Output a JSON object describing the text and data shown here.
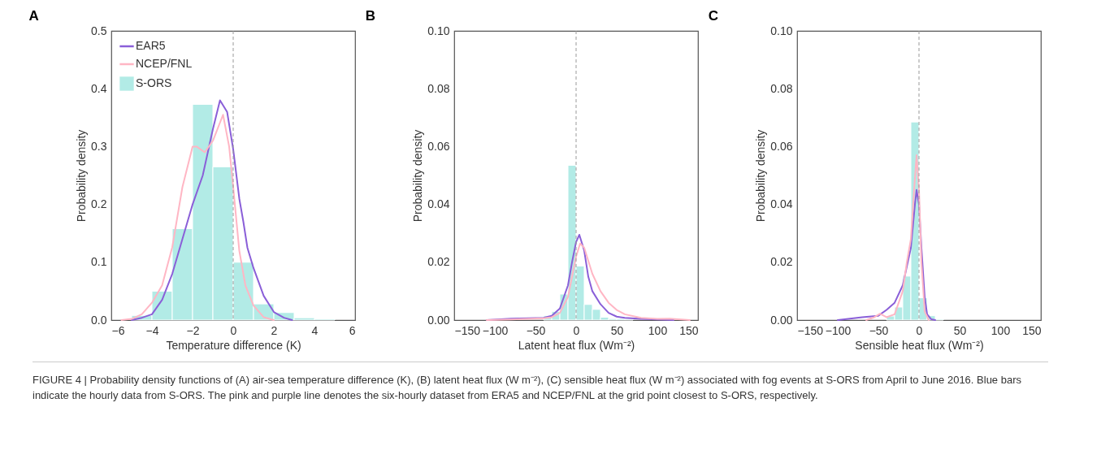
{
  "chart_data": [
    {
      "type": "histogram",
      "title": "A",
      "xlabel": "Temperature difference (K)",
      "ylabel": "Probability density",
      "legend": "top left",
      "xlim": [
        -6,
        6
      ],
      "xticks": [
        -6,
        -4,
        -2,
        0,
        2,
        4,
        6
      ],
      "ylim": [
        0,
        0.5
      ],
      "yticks": [
        {
          "value": 0,
          "label": "0.0"
        },
        {
          "value": 0.1,
          "label": "0.1"
        },
        {
          "value": 0.2,
          "label": "0.2"
        },
        {
          "value": 0.3,
          "label": "0.3"
        },
        {
          "value": 0.4,
          "label": "0.4"
        },
        {
          "value": 0.5,
          "label": "0.5"
        }
      ],
      "grid": false,
      "marker": "none",
      "line_style": "solid",
      "bins": [
        -5,
        -4,
        -3,
        -2,
        -1,
        0,
        1,
        2,
        3,
        4,
        5
      ],
      "series": [
        {
          "name": "EAR5",
          "type": "line",
          "color": "#8a5fd8",
          "x": [
            -5,
            -4.5,
            -4,
            -3.5,
            -3,
            -2.5,
            -2,
            -1.5,
            -1,
            -0.65,
            -0.3,
            0,
            0.3,
            0.5,
            0.7,
            1,
            1.5,
            2,
            2.5,
            2.9
          ],
          "values": [
            0,
            0.004,
            0.01,
            0.035,
            0.08,
            0.14,
            0.2,
            0.25,
            0.33,
            0.38,
            0.36,
            0.295,
            0.21,
            0.17,
            0.125,
            0.09,
            0.042,
            0.014,
            0.004,
            0
          ]
        },
        {
          "name": "NCEP/FNL",
          "type": "line",
          "color": "#ffb6c4",
          "x": [
            -5.5,
            -5,
            -4.5,
            -4,
            -3.5,
            -3,
            -2.5,
            -2,
            -1.8,
            -1.4,
            -1,
            -0.5,
            -0.2,
            0,
            0.3,
            0.6,
            1,
            1.5,
            2
          ],
          "values": [
            0,
            0.002,
            0.01,
            0.03,
            0.06,
            0.126,
            0.23,
            0.3,
            0.3,
            0.29,
            0.31,
            0.355,
            0.3,
            0.23,
            0.12,
            0.06,
            0.025,
            0.005,
            0
          ]
        },
        {
          "name": "S-ORS",
          "color": "#b2ebe6",
          "values": [
            0.008,
            0.05,
            0.158,
            0.373,
            0.265,
            0.1,
            0.028,
            0.013,
            0.004,
            0.002
          ]
        }
      ],
      "ref_lines": [
        {
          "axis": "x",
          "value": 0,
          "color": "#999999",
          "line_style": "dashed"
        }
      ],
      "annotations": [
        "FIGURE 4 | Probability density functions of (A) air-sea temperature difference (K), (B) latent heat flux (W m⁻²), (C) sensible heat flux (W m⁻²) associated with fog events at S-ORS from April to June 2016. Blue bars indicate the hourly data from S-ORS. The pink and purple line denotes the six-hourly dataset from ERA5 and NCEP/FNL at the grid point closest to S-ORS, respectively."
      ]
    },
    {
      "type": "histogram",
      "title": "B",
      "xlabel": "Latent heat flux (Wm⁻²)",
      "ylabel": "Probability density",
      "xlim": [
        -150,
        150
      ],
      "xticks": [
        -150,
        -100,
        -50,
        0,
        50,
        100,
        150
      ],
      "ylim": [
        0,
        0.1
      ],
      "yticks": [
        {
          "value": 0,
          "label": "0.00"
        },
        {
          "value": 0.02,
          "label": "0.02"
        },
        {
          "value": 0.04,
          "label": "0.04"
        },
        {
          "value": 0.06,
          "label": "0.06"
        },
        {
          "value": 0.08,
          "label": "0.08"
        },
        {
          "value": 0.1,
          "label": "0.10"
        }
      ],
      "grid": false,
      "marker": "none",
      "line_style": "solid",
      "bins": [
        -40,
        -30,
        -20,
        -10,
        0,
        10,
        20,
        30,
        40,
        50,
        60,
        70
      ],
      "series": [
        {
          "type": "line",
          "color": "#8a5fd8",
          "x": [
            -110,
            -80,
            -60,
            -40,
            -30,
            -20,
            -10,
            -5,
            0,
            4,
            10,
            15,
            20,
            30,
            40,
            50,
            60,
            80,
            100,
            120
          ],
          "values": [
            0,
            0.0005,
            0.0006,
            0.0008,
            0.0015,
            0.004,
            0.012,
            0.02,
            0.027,
            0.0295,
            0.024,
            0.015,
            0.01,
            0.0055,
            0.0025,
            0.0012,
            0.0008,
            0.0004,
            0.0002,
            0
          ]
        },
        {
          "type": "line",
          "color": "#ffb6c4",
          "x": [
            -110,
            -80,
            -60,
            -40,
            -30,
            -20,
            -10,
            -5,
            0,
            5,
            10,
            20,
            30,
            40,
            50,
            60,
            80,
            100,
            115,
            140
          ],
          "values": [
            0,
            0.0002,
            0.0004,
            0.0006,
            0.001,
            0.0025,
            0.008,
            0.015,
            0.022,
            0.0265,
            0.025,
            0.016,
            0.01,
            0.006,
            0.0035,
            0.002,
            0.0008,
            0.0004,
            0.0005,
            0
          ]
        },
        {
          "color": "#b2ebe6",
          "values": [
            0.0015,
            0.003,
            0.009,
            0.0535,
            0.0187,
            0.0054,
            0.0037,
            0.001,
            0.0005,
            0.0005,
            0.0003
          ]
        }
      ],
      "ref_lines": [
        {
          "axis": "x",
          "value": 0,
          "color": "#999999",
          "line_style": "dashed"
        }
      ]
    },
    {
      "type": "histogram",
      "title": "C",
      "xlabel": "Sensible heat flux (Wm⁻²)",
      "ylabel": "Probability density",
      "xlim": [
        -150,
        150
      ],
      "xticks": [
        -150,
        -100,
        -50,
        0,
        50,
        100,
        150
      ],
      "ylim": [
        0,
        0.1
      ],
      "yticks": [
        {
          "value": 0,
          "label": "0.00"
        },
        {
          "value": 0.02,
          "label": "0.02"
        },
        {
          "value": 0.04,
          "label": "0.04"
        },
        {
          "value": 0.06,
          "label": "0.06"
        },
        {
          "value": 0.08,
          "label": "0.08"
        },
        {
          "value": 0.1,
          "label": "0.10"
        }
      ],
      "grid": false,
      "marker": "none",
      "line_style": "solid",
      "bins": [
        -40,
        -30,
        -20,
        -10,
        0,
        10,
        20,
        30
      ],
      "series": [
        {
          "type": "line",
          "color": "#8a5fd8",
          "x": [
            -100,
            -70,
            -50,
            -40,
            -30,
            -20,
            -10,
            -5,
            -3,
            0,
            3,
            7,
            10,
            15,
            20
          ],
          "values": [
            0,
            0.001,
            0.0015,
            0.0035,
            0.006,
            0.012,
            0.025,
            0.04,
            0.045,
            0.04,
            0.025,
            0.008,
            0.002,
            0.0003,
            0
          ]
        },
        {
          "type": "line",
          "color": "#ffb6c4",
          "x": [
            -65,
            -55,
            -48,
            -40,
            -30,
            -20,
            -15,
            -10,
            -6,
            -3,
            0,
            3,
            7,
            12
          ],
          "values": [
            0,
            0.001,
            0.0022,
            0.001,
            0.002,
            0.01,
            0.02,
            0.028,
            0.045,
            0.057,
            0.045,
            0.02,
            0.003,
            0
          ]
        },
        {
          "color": "#b2ebe6",
          "values": [
            0.0014,
            0.0045,
            0.0152,
            0.0685,
            0.0077,
            0.0015,
            0.0003
          ]
        }
      ],
      "ref_lines": [
        {
          "axis": "x",
          "value": 0,
          "color": "#999999",
          "line_style": "dashed"
        }
      ]
    }
  ]
}
